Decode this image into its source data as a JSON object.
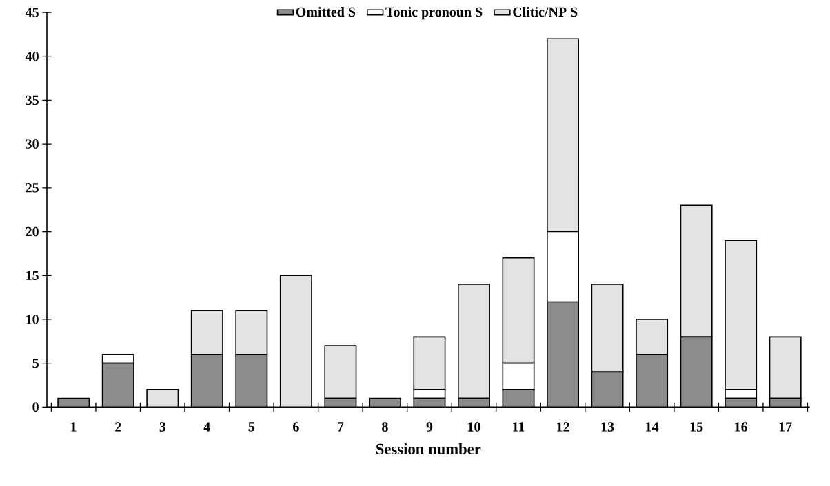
{
  "chart_data": {
    "type": "bar",
    "stacked": true,
    "xlabel": "Session number",
    "categories": [
      "1",
      "2",
      "3",
      "4",
      "5",
      "6",
      "7",
      "8",
      "9",
      "10",
      "11",
      "12",
      "13",
      "14",
      "15",
      "16",
      "17"
    ],
    "series": [
      {
        "name": "Omitted S",
        "color": "#8c8c8c",
        "values": [
          1,
          5,
          0,
          6,
          6,
          0,
          1,
          1,
          1,
          1,
          2,
          12,
          4,
          6,
          8,
          1,
          1
        ]
      },
      {
        "name": "Tonic pronoun S",
        "color": "#ffffff",
        "values": [
          0,
          1,
          0,
          0,
          0,
          0,
          0,
          0,
          1,
          0,
          3,
          8,
          0,
          0,
          0,
          1,
          0
        ]
      },
      {
        "name": "Clitic/NP S",
        "color": "#e3e3e3",
        "values": [
          0,
          0,
          2,
          5,
          5,
          15,
          6,
          0,
          6,
          13,
          12,
          22,
          10,
          4,
          15,
          17,
          7
        ]
      }
    ],
    "ylim": [
      0,
      45
    ],
    "yticks": [
      0,
      5,
      10,
      15,
      20,
      25,
      30,
      35,
      40,
      45
    ],
    "grid": false,
    "legend": "top"
  }
}
